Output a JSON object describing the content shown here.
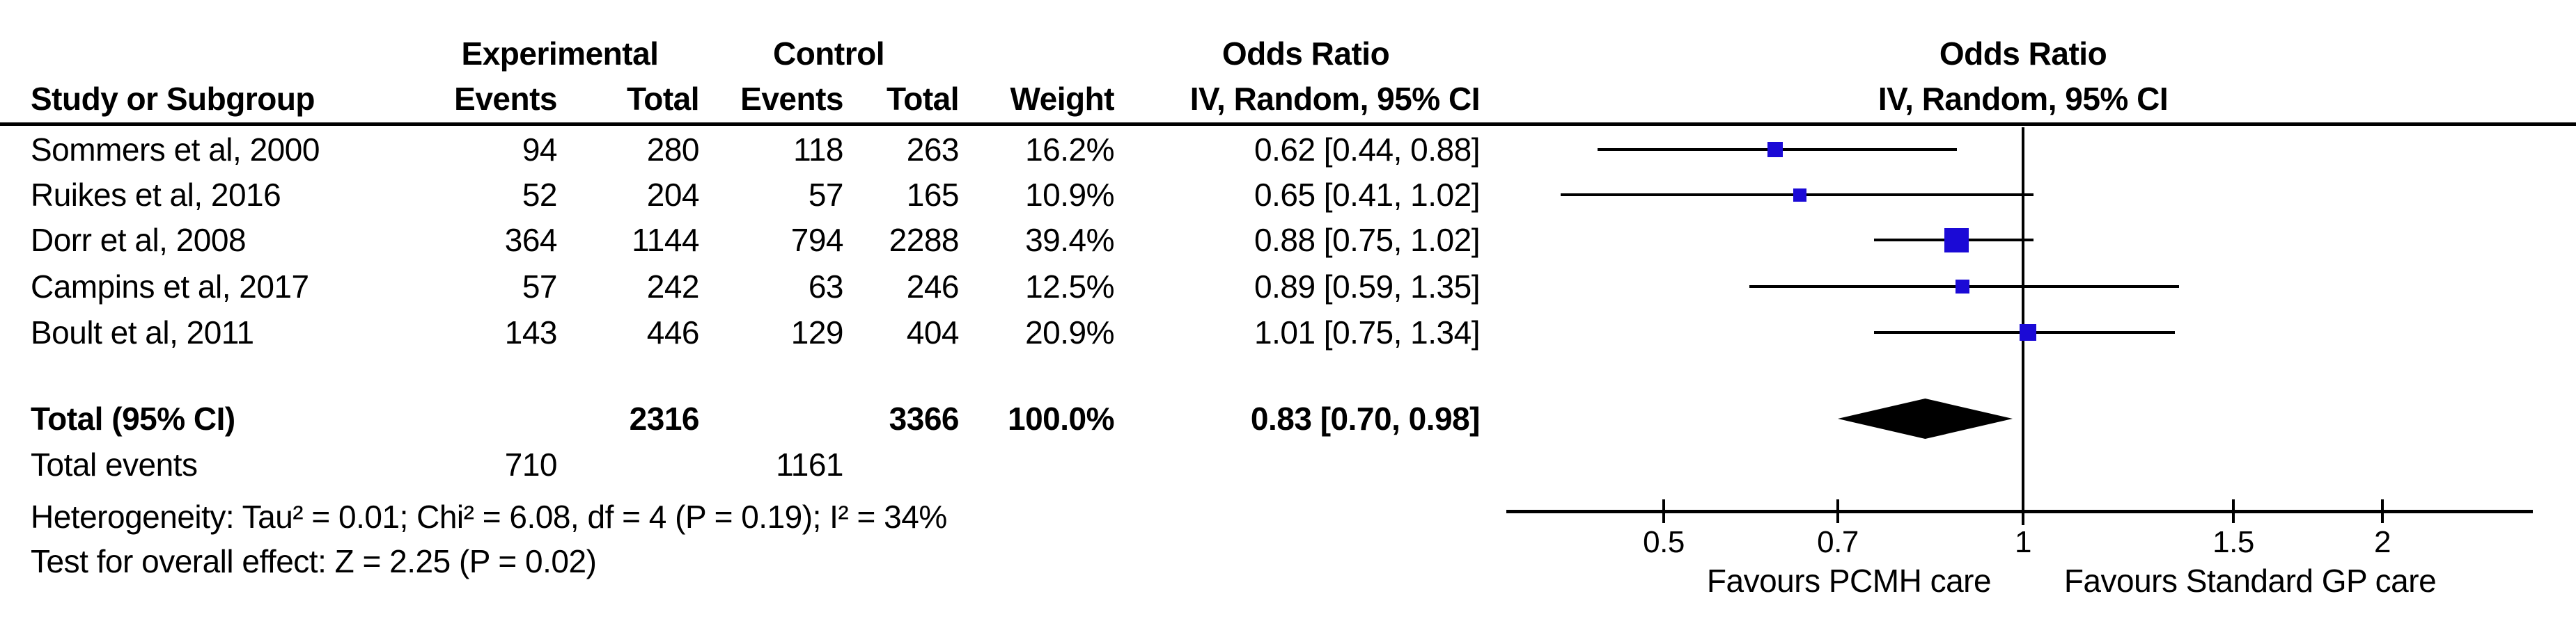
{
  "colors": {
    "marker_blue": "#1B0AD6",
    "line_black": "#000000",
    "background": "#FFFFFF"
  },
  "table": {
    "group_headers": {
      "experimental": "Experimental",
      "control": "Control",
      "odds_ratio": "Odds Ratio"
    },
    "column_headers": {
      "study": "Study or Subgroup",
      "exp_events": "Events",
      "exp_total": "Total",
      "ctrl_events": "Events",
      "ctrl_total": "Total",
      "weight": "Weight",
      "method": "IV, Random, 95% CI"
    }
  },
  "chart_data": {
    "type": "forest",
    "effect_measure": "Odds Ratio",
    "method": "IV, Random, 95% CI",
    "x_scale": "log",
    "x_ticks": [
      0.5,
      0.7,
      1,
      1.5,
      2
    ],
    "x_tick_labels": [
      "0.5",
      "0.7",
      "1",
      "1.5",
      "2"
    ],
    "x_range_displayed": [
      0.39,
      2.67
    ],
    "null_line": 1,
    "plot_header_line1": "Odds Ratio",
    "plot_header_line2": "IV, Random, 95% CI",
    "favours_left": "Favours PCMH care",
    "favours_right": "Favours Standard GP care",
    "studies": [
      {
        "name": "Sommers et al, 2000",
        "exp_events": 94,
        "exp_total": 280,
        "ctrl_events": 118,
        "ctrl_total": 263,
        "weight": "16.2%",
        "weight_pct": 16.2,
        "or": 0.62,
        "ci_low": 0.44,
        "ci_high": 0.88,
        "or_ci_label": "0.62 [0.44, 0.88]"
      },
      {
        "name": "Ruikes et al, 2016",
        "exp_events": 52,
        "exp_total": 204,
        "ctrl_events": 57,
        "ctrl_total": 165,
        "weight": "10.9%",
        "weight_pct": 10.9,
        "or": 0.65,
        "ci_low": 0.41,
        "ci_high": 1.02,
        "or_ci_label": "0.65 [0.41, 1.02]"
      },
      {
        "name": "Dorr et al, 2008",
        "exp_events": 364,
        "exp_total": 1144,
        "ctrl_events": 794,
        "ctrl_total": 2288,
        "weight": "39.4%",
        "weight_pct": 39.4,
        "or": 0.88,
        "ci_low": 0.75,
        "ci_high": 1.02,
        "or_ci_label": "0.88 [0.75, 1.02]"
      },
      {
        "name": "Campins et al, 2017",
        "exp_events": 57,
        "exp_total": 242,
        "ctrl_events": 63,
        "ctrl_total": 246,
        "weight": "12.5%",
        "weight_pct": 12.5,
        "or": 0.89,
        "ci_low": 0.59,
        "ci_high": 1.35,
        "or_ci_label": "0.89 [0.59, 1.35]"
      },
      {
        "name": "Boult et al, 2011",
        "exp_events": 143,
        "exp_total": 446,
        "ctrl_events": 129,
        "ctrl_total": 404,
        "weight": "20.9%",
        "weight_pct": 20.9,
        "or": 1.01,
        "ci_low": 0.75,
        "ci_high": 1.34,
        "or_ci_label": "1.01 [0.75, 1.34]"
      }
    ],
    "total": {
      "label": "Total (95% CI)",
      "exp_total": 2316,
      "ctrl_total": 3366,
      "weight": "100.0%",
      "or": 0.83,
      "ci_low": 0.7,
      "ci_high": 0.98,
      "or_ci_label": "0.83 [0.70, 0.98]"
    },
    "total_events": {
      "label": "Total events",
      "exp_events": 710,
      "ctrl_events": 1161
    },
    "heterogeneity": "Heterogeneity: Tau² = 0.01; Chi² = 6.08, df = 4 (P = 0.19); I² = 34%",
    "overall_effect": "Test for overall effect: Z = 2.25 (P = 0.02)"
  }
}
